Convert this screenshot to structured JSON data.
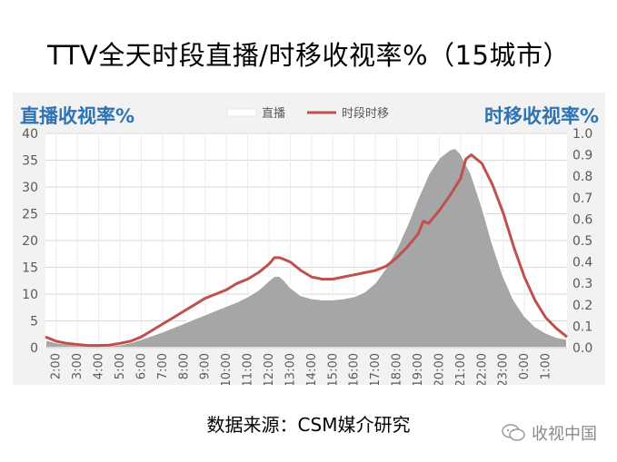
{
  "title": "TTV全天时段直播/时移收视率%（15城市）",
  "source": "数据来源：CSM媒介研究",
  "watermark": "收视中国",
  "colors": {
    "live_fill": "#a6a6a6",
    "live_border": "#ffffff",
    "timeshift_line": "#c0504d",
    "axis_title": "#2e74b5",
    "grid": "#d9d9d9",
    "panel": "#f2f2f2"
  },
  "chart_data": {
    "type": "area",
    "title": "TTV全天时段直播/时移收视率%（15城市）",
    "ylabel_left": "直播收视率%",
    "ylabel_right": "时移收视率%",
    "legend": [
      "直播",
      "时段时移"
    ],
    "legend_position": "top-center",
    "grid": true,
    "y_left_range": [
      0,
      40
    ],
    "y_right_range": [
      0,
      1.0
    ],
    "y_left_ticks": [
      "0",
      "5",
      "10",
      "15",
      "20",
      "25",
      "30",
      "35",
      "40"
    ],
    "y_right_ticks": [
      "0.0",
      "0.1",
      "0.2",
      "0.3",
      "0.4",
      "0.5",
      "0.6",
      "0.7",
      "0.8",
      "0.9",
      "1.0"
    ],
    "x_ticks": [
      "2:00",
      "3:00",
      "4:00",
      "5:00",
      "6:00",
      "7:00",
      "8:00",
      "9:00",
      "10:00",
      "11:00",
      "12:00",
      "13:00",
      "14:00",
      "15:00",
      "16:00",
      "17:00",
      "18:00",
      "19:00",
      "20:00",
      "21:00",
      "22:00",
      "23:00",
      "0:00",
      "1:00"
    ],
    "x_range_hours": [
      1.5,
      26.0
    ],
    "series": [
      {
        "name": "直播",
        "axis": "left",
        "style": "area",
        "x": [
          1.5,
          2.0,
          2.5,
          3.0,
          3.5,
          4.0,
          4.5,
          5.0,
          5.5,
          6.0,
          6.5,
          7.0,
          7.5,
          8.0,
          8.5,
          9.0,
          9.5,
          10.0,
          10.5,
          11.0,
          11.5,
          12.0,
          12.25,
          12.5,
          12.75,
          13.0,
          13.5,
          14.0,
          14.5,
          15.0,
          15.5,
          16.0,
          16.5,
          17.0,
          17.5,
          18.0,
          18.5,
          19.0,
          19.5,
          20.0,
          20.5,
          20.75,
          21.0,
          21.5,
          22.0,
          22.5,
          23.0,
          23.5,
          24.0,
          24.5,
          25.0,
          25.5,
          26.0
        ],
        "values": [
          1.5,
          1.0,
          0.7,
          0.5,
          0.4,
          0.35,
          0.4,
          0.6,
          1.0,
          1.6,
          2.3,
          3.0,
          3.8,
          4.6,
          5.4,
          6.2,
          7.0,
          7.8,
          8.6,
          9.6,
          10.8,
          12.6,
          13.4,
          13.4,
          12.5,
          11.3,
          9.8,
          9.2,
          9.0,
          9.0,
          9.2,
          9.6,
          10.5,
          12.2,
          15.0,
          18.6,
          23.0,
          28.0,
          32.5,
          35.5,
          37.0,
          37.3,
          36.3,
          32.5,
          26.5,
          19.5,
          13.5,
          9.0,
          6.0,
          4.0,
          2.8,
          2.0,
          1.6
        ]
      },
      {
        "name": "时段时移",
        "axis": "right",
        "style": "line",
        "x": [
          1.5,
          2.0,
          2.5,
          3.0,
          3.5,
          4.0,
          4.5,
          5.0,
          5.5,
          6.0,
          6.5,
          7.0,
          7.5,
          8.0,
          8.5,
          9.0,
          9.5,
          10.0,
          10.5,
          11.0,
          11.5,
          12.0,
          12.25,
          12.5,
          12.75,
          13.0,
          13.5,
          14.0,
          14.5,
          15.0,
          15.5,
          16.0,
          16.5,
          17.0,
          17.5,
          18.0,
          18.5,
          19.0,
          19.25,
          19.5,
          20.0,
          20.5,
          21.0,
          21.25,
          21.5,
          22.0,
          22.5,
          23.0,
          23.5,
          24.0,
          24.5,
          25.0,
          25.5,
          26.0
        ],
        "values": [
          0.05,
          0.03,
          0.02,
          0.015,
          0.01,
          0.01,
          0.012,
          0.02,
          0.03,
          0.05,
          0.08,
          0.11,
          0.14,
          0.17,
          0.2,
          0.23,
          0.25,
          0.27,
          0.3,
          0.32,
          0.35,
          0.39,
          0.42,
          0.42,
          0.41,
          0.4,
          0.36,
          0.33,
          0.32,
          0.32,
          0.33,
          0.34,
          0.35,
          0.36,
          0.38,
          0.42,
          0.47,
          0.53,
          0.59,
          0.58,
          0.64,
          0.71,
          0.79,
          0.88,
          0.9,
          0.86,
          0.76,
          0.63,
          0.47,
          0.33,
          0.22,
          0.14,
          0.09,
          0.05
        ]
      }
    ]
  }
}
